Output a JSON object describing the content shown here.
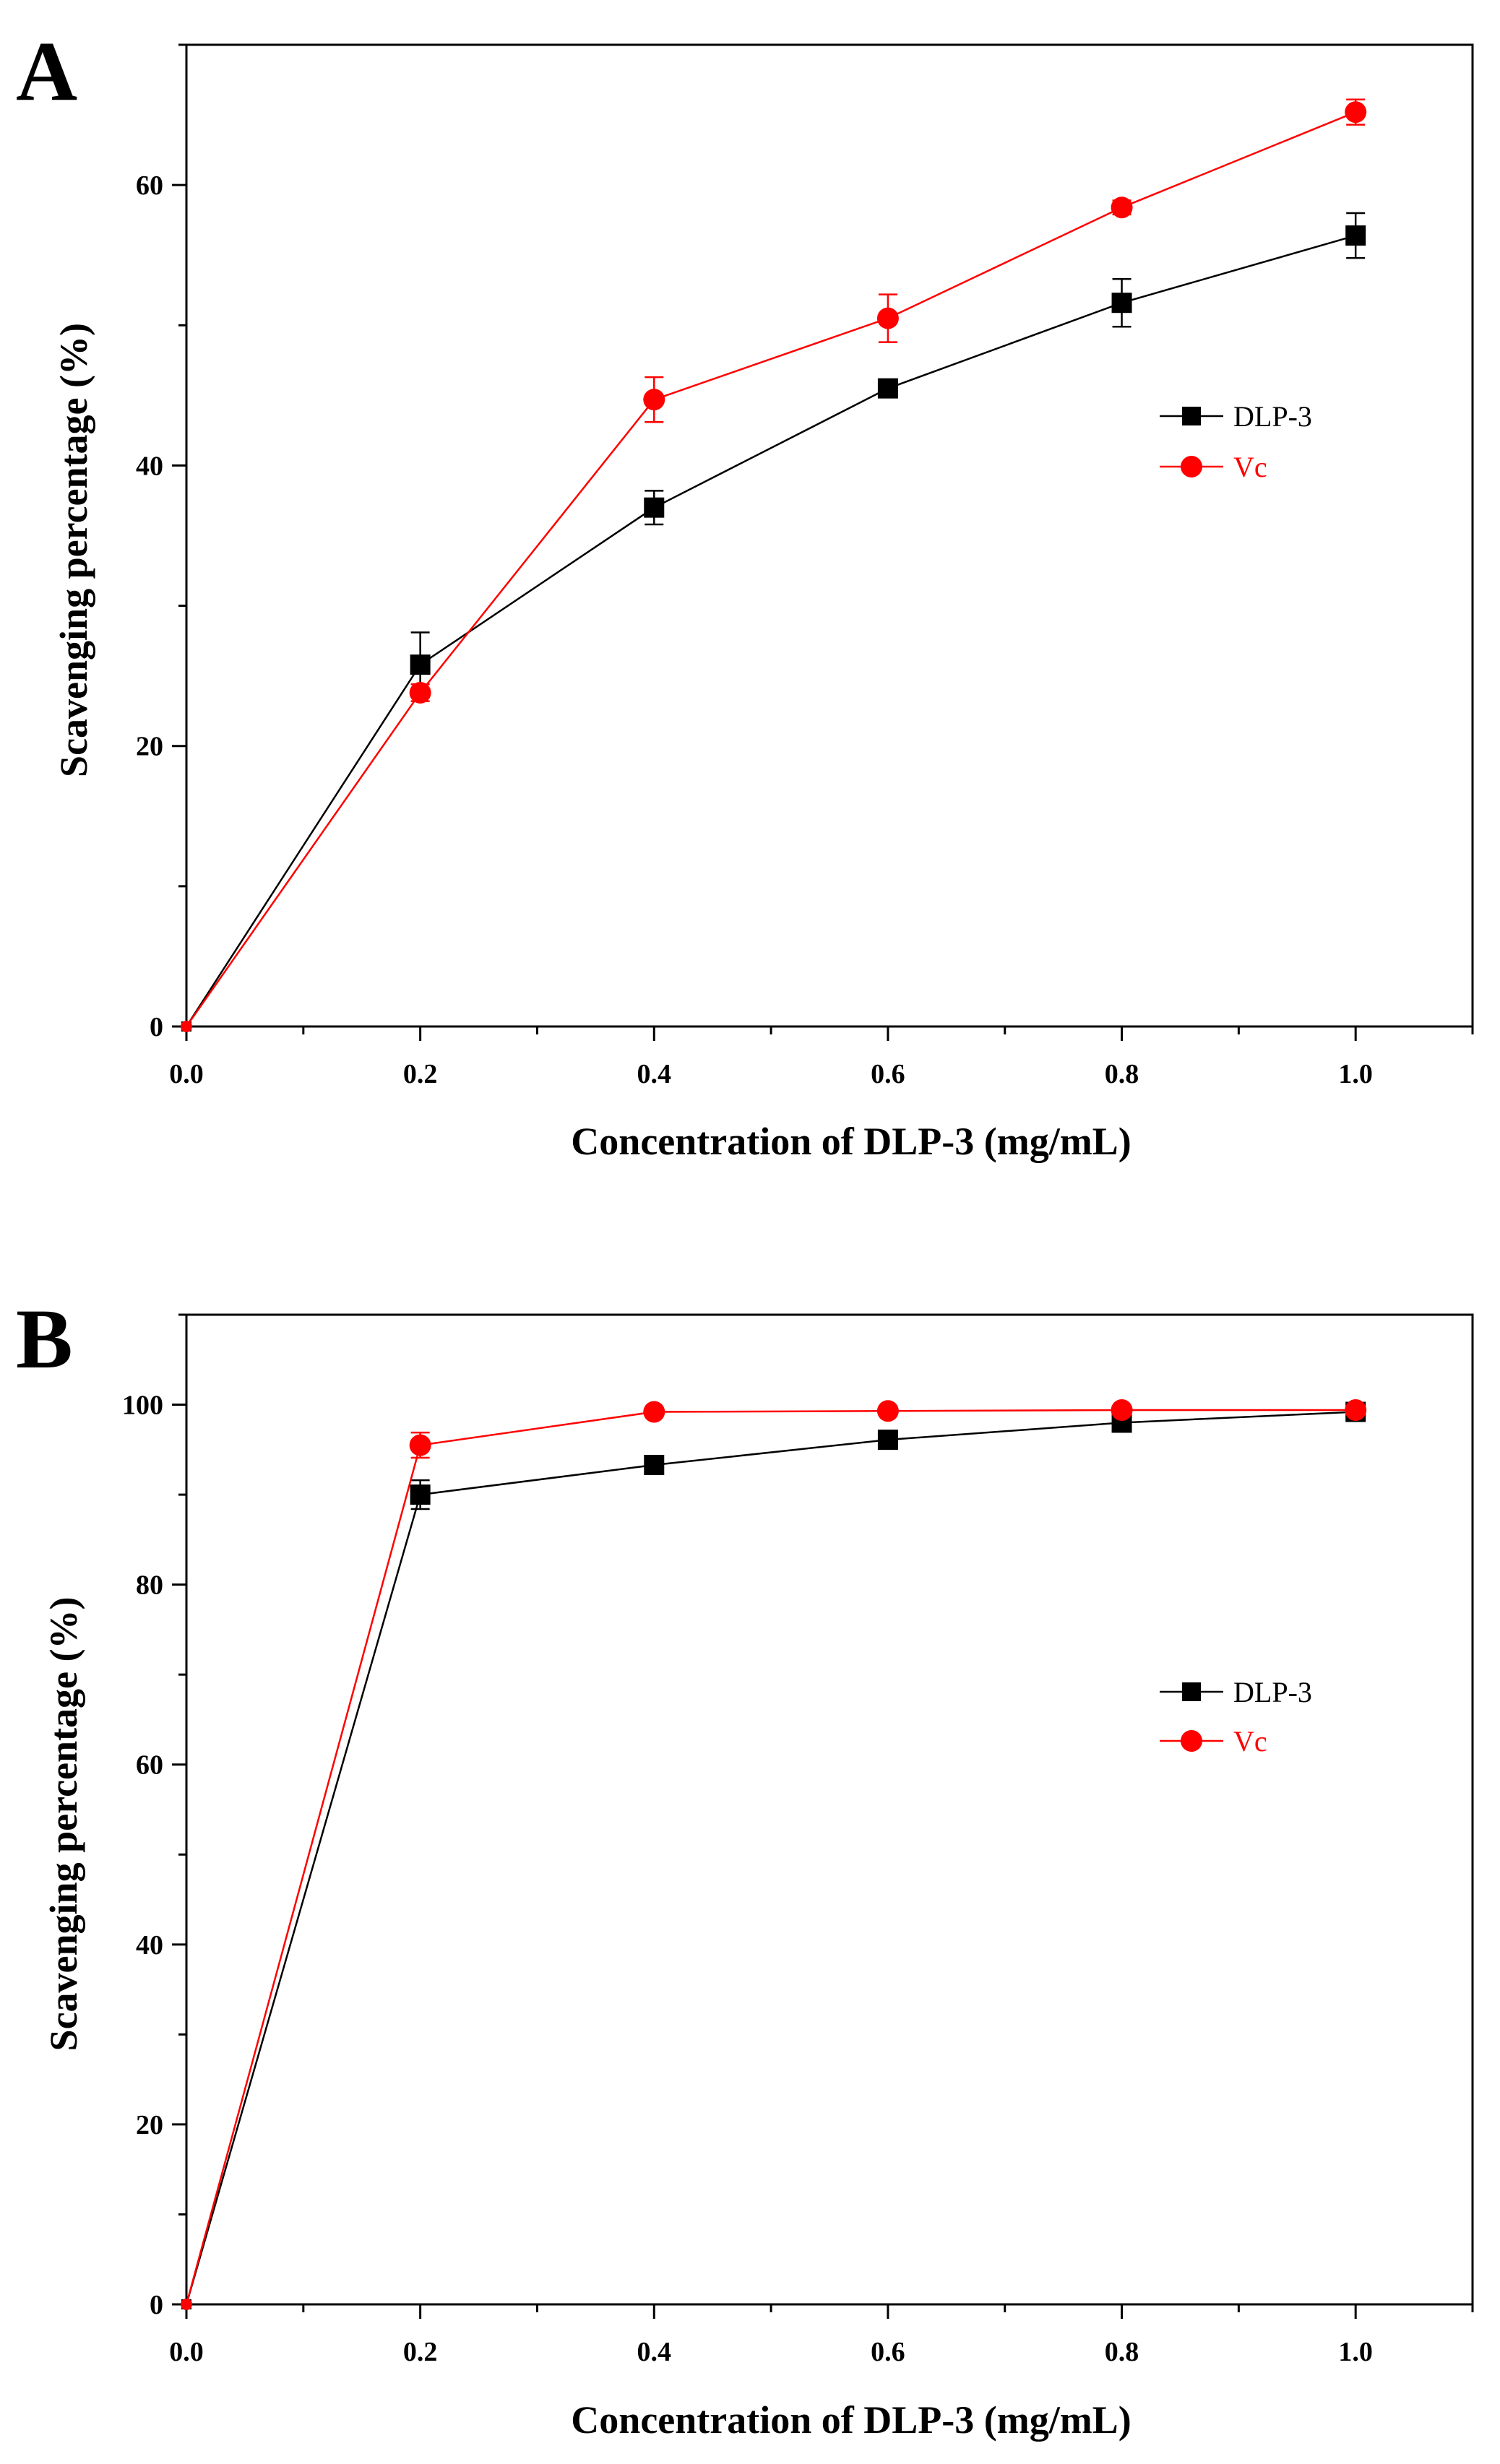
{
  "chart_data": [
    {
      "panel_label": "A",
      "type": "line",
      "xlabel": "Concentration of DLP-3 (mg/mL)",
      "ylabel": "Scavenging percentage (%)",
      "xlim": [
        0.0,
        1.1
      ],
      "ylim": [
        0,
        70
      ],
      "xticks": [
        0.0,
        0.2,
        0.4,
        0.6,
        0.8,
        1.0
      ],
      "xtick_labels": [
        "0.0",
        "0.2",
        "0.4",
        "0.6",
        "0.8",
        "1.0"
      ],
      "yticks": [
        0,
        20,
        40,
        60
      ],
      "ytick_labels": [
        "0",
        "20",
        "40",
        "60"
      ],
      "y_minor_step": 10,
      "x_minor_step": 0.1,
      "grid": false,
      "legend_position": "right",
      "series": [
        {
          "name": "DLP-3",
          "color": "#000000",
          "marker": "square",
          "x": [
            0.0,
            0.2,
            0.4,
            0.6,
            0.8,
            1.0
          ],
          "y": [
            0.0,
            25.8,
            37.0,
            45.5,
            51.6,
            56.4
          ],
          "err": [
            0.0,
            2.3,
            1.2,
            0.5,
            1.7,
            1.6
          ]
        },
        {
          "name": "Vc",
          "color": "#ff0000",
          "marker": "circle",
          "x": [
            0.0,
            0.2,
            0.4,
            0.6,
            0.8,
            1.0
          ],
          "y": [
            0.0,
            23.8,
            44.7,
            50.5,
            58.4,
            65.2
          ],
          "err": [
            0.0,
            0.6,
            1.6,
            1.7,
            0.5,
            0.9
          ]
        }
      ]
    },
    {
      "panel_label": "B",
      "type": "line",
      "xlabel": "Concentration of DLP-3 (mg/mL)",
      "ylabel": "Scavenging percentage (%)",
      "xlim": [
        0.0,
        1.1
      ],
      "ylim": [
        0,
        110
      ],
      "xticks": [
        0.0,
        0.2,
        0.4,
        0.6,
        0.8,
        1.0
      ],
      "xtick_labels": [
        "0.0",
        "0.2",
        "0.4",
        "0.6",
        "0.8",
        "1.0"
      ],
      "yticks": [
        0,
        20,
        40,
        60,
        80,
        100
      ],
      "ytick_labels": [
        "0",
        "20",
        "40",
        "60",
        "80",
        "100"
      ],
      "y_minor_step": 10,
      "x_minor_step": 0.1,
      "grid": false,
      "legend_position": "right",
      "series": [
        {
          "name": "DLP-3",
          "color": "#000000",
          "marker": "square",
          "x": [
            0.0,
            0.2,
            0.4,
            0.6,
            0.8,
            1.0
          ],
          "y": [
            0.0,
            90.0,
            93.3,
            96.1,
            98.0,
            99.2
          ],
          "err": [
            0.0,
            1.6,
            0.5,
            0.5,
            0.5,
            0.3
          ]
        },
        {
          "name": "Vc",
          "color": "#ff0000",
          "marker": "circle",
          "x": [
            0.0,
            0.2,
            0.4,
            0.6,
            0.8,
            1.0
          ],
          "y": [
            0.0,
            95.5,
            99.2,
            99.3,
            99.4,
            99.4
          ],
          "err": [
            0.0,
            1.4,
            0.4,
            0.4,
            0.3,
            0.3
          ]
        }
      ]
    }
  ]
}
